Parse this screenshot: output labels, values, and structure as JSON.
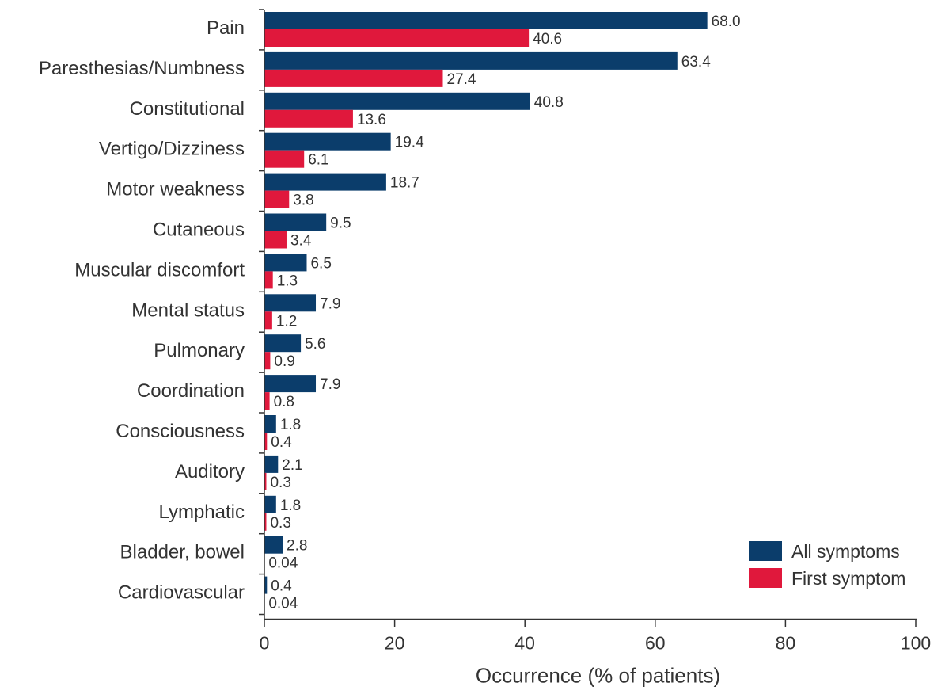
{
  "chart_data": {
    "type": "bar",
    "orientation": "horizontal",
    "categories": [
      "Pain",
      "Paresthesias/Numbness",
      "Constitutional",
      "Vertigo/Dizziness",
      "Motor weakness",
      "Cutaneous",
      "Muscular discomfort",
      "Mental status",
      "Pulmonary",
      "Coordination",
      "Consciousness",
      "Auditory",
      "Lymphatic",
      "Bladder, bowel",
      "Cardiovascular"
    ],
    "series": [
      {
        "name": "All symptoms",
        "color": "#0b3d6b",
        "values": [
          68.0,
          63.4,
          40.8,
          19.4,
          18.7,
          9.5,
          6.5,
          7.9,
          5.6,
          7.9,
          1.8,
          2.1,
          1.8,
          2.8,
          0.4
        ],
        "labels": [
          "68.0",
          "63.4",
          "40.8",
          "19.4",
          "18.7",
          "9.5",
          "6.5",
          "7.9",
          "5.6",
          "7.9",
          "1.8",
          "2.1",
          "1.8",
          "2.8",
          "0.4"
        ]
      },
      {
        "name": "First symptom",
        "color": "#e0183c",
        "values": [
          40.6,
          27.4,
          13.6,
          6.1,
          3.8,
          3.4,
          1.3,
          1.2,
          0.9,
          0.8,
          0.4,
          0.3,
          0.3,
          0.04,
          0.04
        ],
        "labels": [
          "40.6",
          "27.4",
          "13.6",
          "6.1",
          "3.8",
          "3.4",
          "1.3",
          "1.2",
          "0.9",
          "0.8",
          "0.4",
          "0.3",
          "0.3",
          "0.04",
          "0.04"
        ]
      }
    ],
    "xlabel": "Occurrence (% of patients)",
    "ylabel": "",
    "xlim": [
      0,
      100
    ],
    "xticks": [
      0,
      20,
      40,
      60,
      80,
      100
    ],
    "xtick_labels": [
      "0",
      "20",
      "40",
      "60",
      "80",
      "100"
    ],
    "grid": false,
    "legend_position": "bottom-right"
  }
}
